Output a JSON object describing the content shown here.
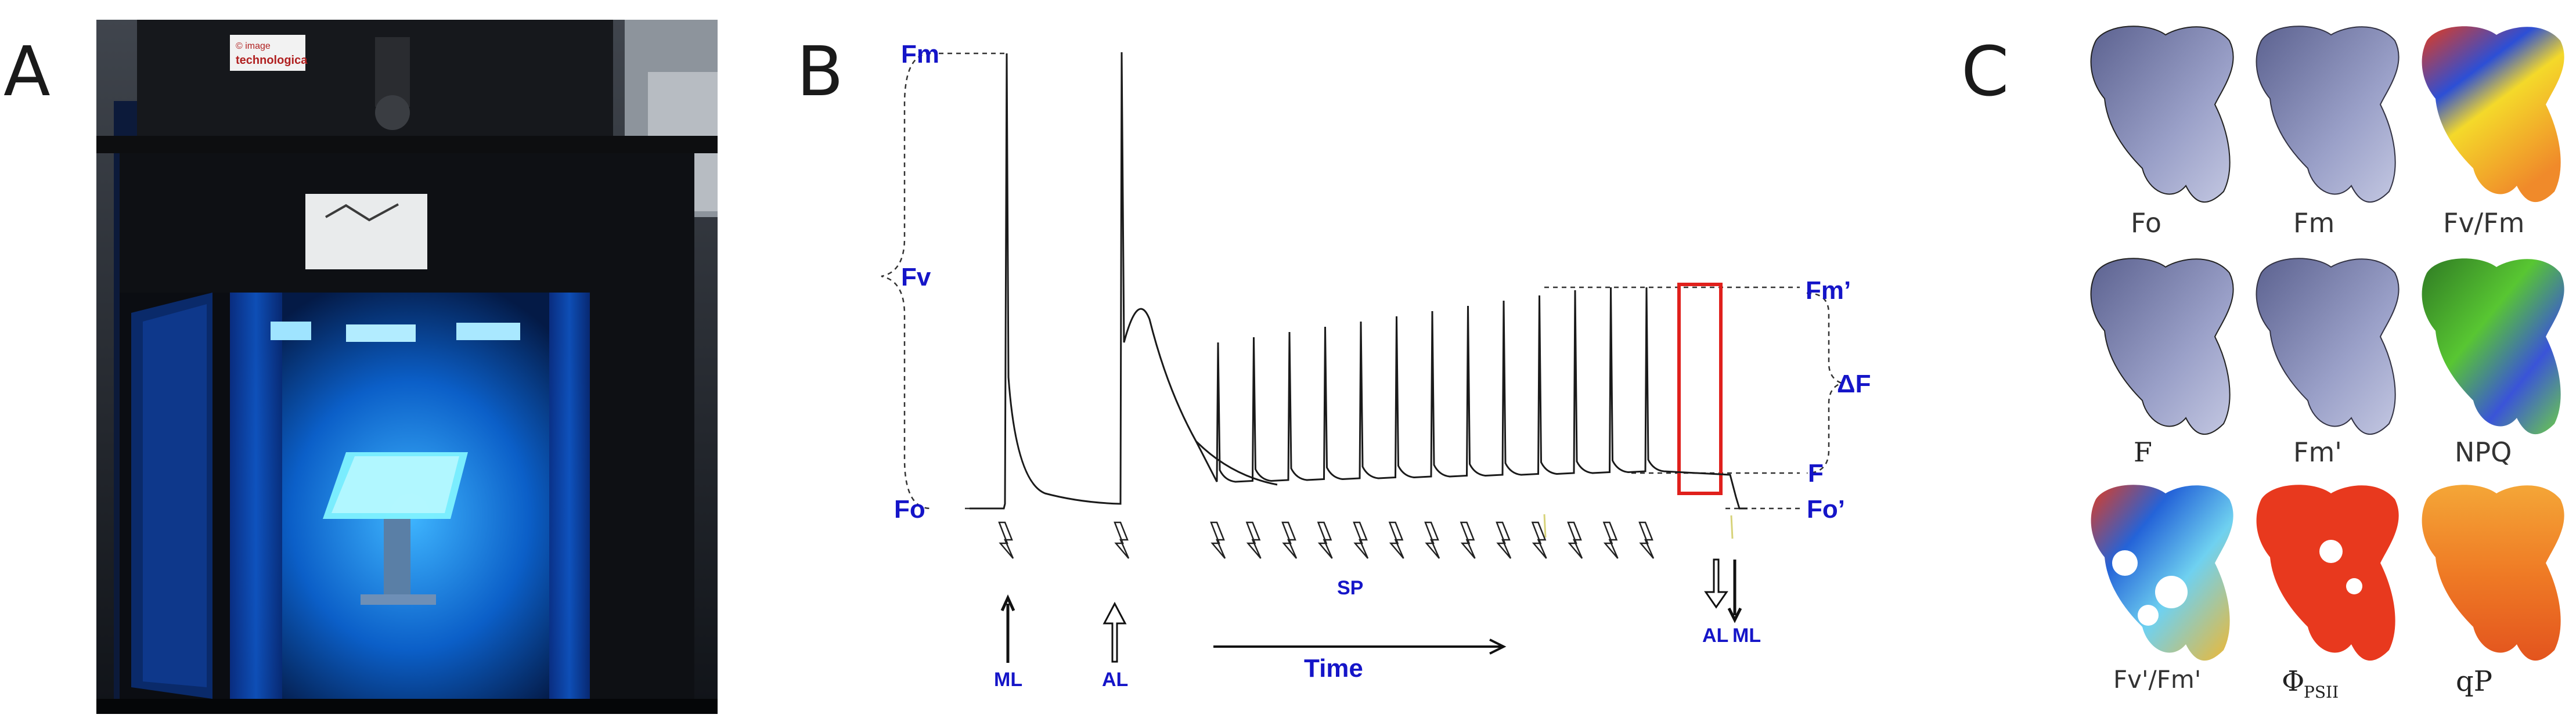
{
  "panels": {
    "a": "A",
    "b": "B",
    "c": "C"
  },
  "photo": {
    "box_label_line1": "© image",
    "box_label_line2": "technologica"
  },
  "trace": {
    "labels": {
      "fm": "Fm",
      "fv": "Fv",
      "fo": "Fo",
      "fm_prime": "Fm’",
      "delta_f": "ΔF",
      "f": "F",
      "fo_prime": "Fo’",
      "sp": "SP",
      "ml": "ML",
      "al": "AL",
      "time": "Time",
      "al_end": "AL",
      "ml_end": "ML"
    },
    "colors": {
      "label": "#1515c8",
      "trace": "#1a1a1a",
      "highlight": "#e0201c"
    },
    "saturating_pulses": 15
  },
  "maps": {
    "captions": [
      "Fo",
      "Fm",
      "Fv/Fm",
      "F",
      "Fm'",
      "NPQ",
      "Fv'/Fm'",
      "Φ",
      "qP"
    ],
    "phi_subscript": "PSII"
  }
}
